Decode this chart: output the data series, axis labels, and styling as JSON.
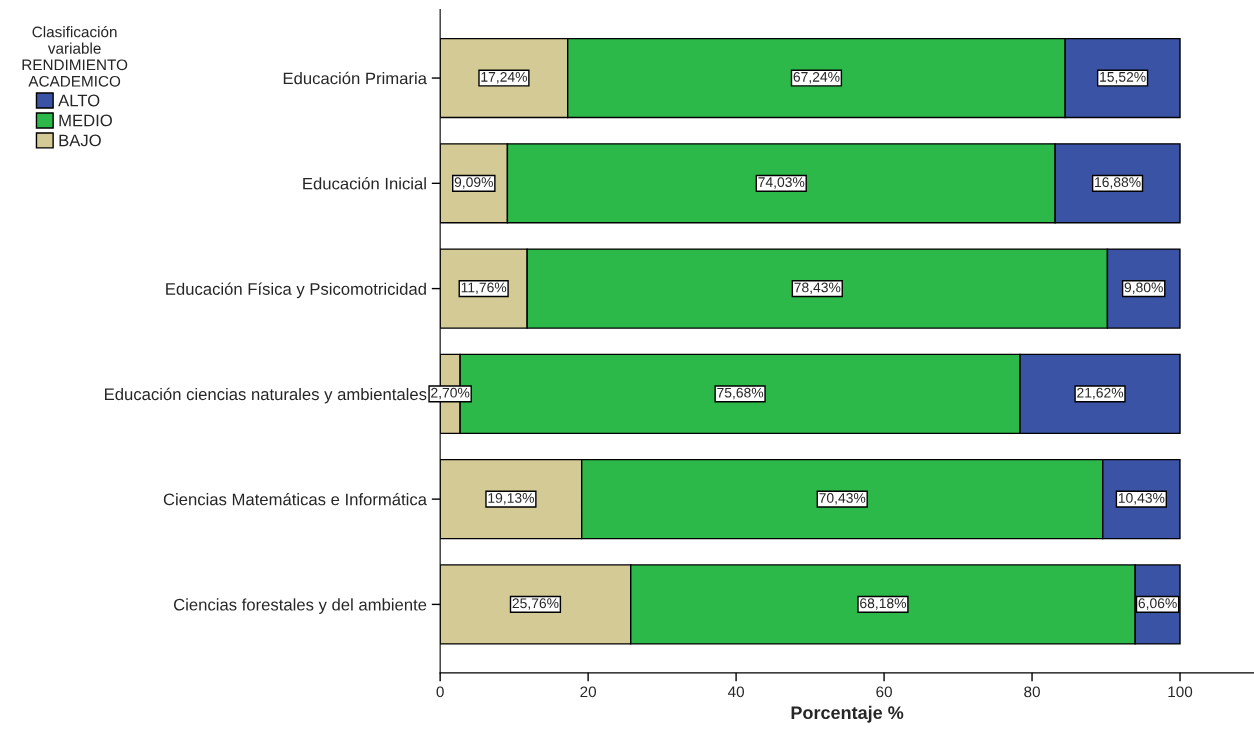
{
  "chart_data": {
    "type": "bar",
    "orientation": "horizontal",
    "stacked": true,
    "xlabel": "Porcentaje %",
    "legend_title": "Clasificación\nvariable\nRENDIMIENTO\nACADEMICO",
    "legend": "top left",
    "categories": [
      "Educación Primaria",
      "Educación Inicial",
      "Educación Física y Psicomotricidad",
      "Educación ciencias naturales y ambientales",
      "Ciencias Matemáticas e Informática",
      "Ciencias forestales y del ambiente"
    ],
    "series": [
      {
        "name": "BAJO",
        "color": "#d3ca96",
        "values": [
          17.24,
          9.09,
          11.76,
          2.7,
          19.13,
          25.76
        ],
        "value_labels": [
          "17,24%",
          "9,09%",
          "11,76%",
          "2,70%",
          "19,13%",
          "25,76%"
        ]
      },
      {
        "name": "MEDIO",
        "color": "#2db84a",
        "values": [
          67.24,
          74.03,
          78.43,
          75.68,
          70.43,
          68.18
        ],
        "value_labels": [
          "67,24%",
          "74,03%",
          "78,43%",
          "75,68%",
          "70,43%",
          "68,18%"
        ]
      },
      {
        "name": "ALTO",
        "color": "#3a53a4",
        "values": [
          15.52,
          16.88,
          9.8,
          21.62,
          10.43,
          6.06
        ],
        "value_labels": [
          "15,52%",
          "16,88%",
          "9,80%",
          "21,62%",
          "10,43%",
          "6,06%"
        ]
      }
    ],
    "xlim": [
      0,
      110
    ],
    "xticks": [
      0,
      20,
      40,
      60,
      80,
      100
    ],
    "grid": false
  }
}
